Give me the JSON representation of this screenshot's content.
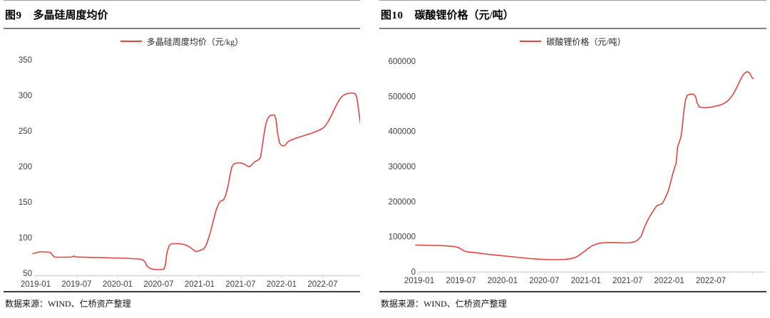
{
  "palette": {
    "series_line": "#de4540",
    "axis_line": "#d6d6d6",
    "tick_text": "#3d3d3d"
  },
  "chart_data": [
    {
      "type": "line",
      "figure_label": "图9",
      "title": "多晶硅周度均价",
      "legend": [
        "多晶硅周度均价（元/kg）"
      ],
      "source_note": "数据来源：WIND、仁桥资产整理",
      "xlabel": "",
      "ylabel": "",
      "ylim": [
        50,
        350
      ],
      "yticks": [
        50,
        100,
        150,
        200,
        250,
        300,
        350
      ],
      "x_unit": "months since 2019-01",
      "x_range": [
        -0.5,
        48.3
      ],
      "grid": false,
      "legend_position": "top-center",
      "xticks": [
        {
          "t": 0,
          "label": "2019-01"
        },
        {
          "t": 6,
          "label": "2019-07"
        },
        {
          "t": 12,
          "label": "2020-01"
        },
        {
          "t": 18,
          "label": "2020-07"
        },
        {
          "t": 24,
          "label": "2021-01"
        },
        {
          "t": 30,
          "label": "2021-07"
        },
        {
          "t": 36,
          "label": "2022-01"
        },
        {
          "t": 42,
          "label": "2022-07"
        },
        {
          "t": 48,
          "label": ""
        }
      ],
      "series": [
        {
          "name": "多晶硅周度均价（元/kg）",
          "points": [
            [
              -0.4,
              77.5
            ],
            [
              0,
              78.5
            ],
            [
              0.6,
              80
            ],
            [
              1.2,
              80
            ],
            [
              1.8,
              79.5
            ],
            [
              2.2,
              79
            ],
            [
              2.5,
              75
            ],
            [
              2.8,
              72.5
            ],
            [
              3.5,
              72.5
            ],
            [
              4.5,
              72.5
            ],
            [
              5.3,
              72.7
            ],
            [
              5.6,
              74
            ],
            [
              5.9,
              72.8
            ],
            [
              7,
              72.5
            ],
            [
              8,
              72.2
            ],
            [
              9,
              72
            ],
            [
              10,
              71.8
            ],
            [
              11,
              71.5
            ],
            [
              12,
              71.2
            ],
            [
              13,
              71
            ],
            [
              14,
              70.5
            ],
            [
              15,
              70
            ],
            [
              15.6,
              69.2
            ],
            [
              16,
              66
            ],
            [
              16.3,
              60
            ],
            [
              16.7,
              57
            ],
            [
              17.2,
              55.5
            ],
            [
              17.8,
              55
            ],
            [
              18.4,
              55
            ],
            [
              18.8,
              56
            ],
            [
              19,
              62
            ],
            [
              19.2,
              78
            ],
            [
              19.5,
              88
            ],
            [
              19.8,
              91
            ],
            [
              20.2,
              91.5
            ],
            [
              20.8,
              91.5
            ],
            [
              21.4,
              91
            ],
            [
              22,
              89.5
            ],
            [
              22.5,
              87
            ],
            [
              23,
              83.5
            ],
            [
              23.4,
              80.5
            ],
            [
              23.8,
              81
            ],
            [
              24.2,
              82.5
            ],
            [
              24.6,
              84
            ],
            [
              24.9,
              88
            ],
            [
              25.2,
              96
            ],
            [
              25.6,
              108
            ],
            [
              26,
              124
            ],
            [
              26.4,
              138
            ],
            [
              26.8,
              148
            ],
            [
              27.1,
              151.5
            ],
            [
              27.5,
              153
            ],
            [
              27.8,
              159
            ],
            [
              28.1,
              170
            ],
            [
              28.4,
              185
            ],
            [
              28.7,
              199
            ],
            [
              29,
              203.5
            ],
            [
              29.5,
              205
            ],
            [
              30,
              205
            ],
            [
              30.5,
              203.5
            ],
            [
              31,
              200.5
            ],
            [
              31.3,
              199.5
            ],
            [
              31.7,
              203
            ],
            [
              32.1,
              207
            ],
            [
              32.5,
              208.5
            ],
            [
              32.9,
              212
            ],
            [
              33.1,
              224
            ],
            [
              33.4,
              244
            ],
            [
              33.7,
              260
            ],
            [
              34,
              268
            ],
            [
              34.3,
              271.5
            ],
            [
              34.7,
              272.5
            ],
            [
              35,
              272
            ],
            [
              35.2,
              265
            ],
            [
              35.4,
              248
            ],
            [
              35.7,
              233
            ],
            [
              36,
              229.5
            ],
            [
              36.4,
              229
            ],
            [
              36.7,
              232
            ],
            [
              37,
              235.5
            ],
            [
              37.5,
              237.5
            ],
            [
              38,
              239.5
            ],
            [
              38.5,
              241
            ],
            [
              39,
              242.5
            ],
            [
              39.5,
              244
            ],
            [
              40,
              245.5
            ],
            [
              40.5,
              247
            ],
            [
              41,
              249
            ],
            [
              41.5,
              251
            ],
            [
              42,
              253.5
            ],
            [
              42.4,
              257
            ],
            [
              42.8,
              263
            ],
            [
              43.2,
              270
            ],
            [
              43.6,
              278
            ],
            [
              44,
              286
            ],
            [
              44.4,
              293
            ],
            [
              44.8,
              298
            ],
            [
              45.2,
              301
            ],
            [
              45.6,
              302.5
            ],
            [
              46,
              303
            ],
            [
              46.5,
              303
            ],
            [
              46.8,
              302
            ],
            [
              47,
              297
            ],
            [
              47.2,
              285
            ],
            [
              47.4,
              270
            ],
            [
              47.6,
              255
            ]
          ]
        }
      ]
    },
    {
      "type": "line",
      "figure_label": "图10",
      "title": "碳酸锂价格（元/吨）",
      "legend": [
        "碳酸锂价格（元/吨）"
      ],
      "source_note": "数据来源：WIND、仁桥资产整理",
      "xlabel": "",
      "ylabel": "",
      "ylim": [
        0,
        600000
      ],
      "yticks": [
        0,
        100000,
        200000,
        300000,
        400000,
        500000,
        600000
      ],
      "x_unit": "months since 2019-01",
      "x_range": [
        -0.6,
        48.4
      ],
      "grid": false,
      "legend_position": "top-center",
      "xticks": [
        {
          "t": 0,
          "label": "2019-01"
        },
        {
          "t": 6,
          "label": "2019-07"
        },
        {
          "t": 12,
          "label": "2020-01"
        },
        {
          "t": 18,
          "label": "2020-07"
        },
        {
          "t": 24,
          "label": "2021-01"
        },
        {
          "t": 30,
          "label": "2021-07"
        },
        {
          "t": 36,
          "label": "2022-01"
        },
        {
          "t": 42,
          "label": "2022-07"
        },
        {
          "t": 48,
          "label": ""
        }
      ],
      "series": [
        {
          "name": "碳酸锂价格（元/吨）",
          "points": [
            [
              -0.5,
              76000
            ],
            [
              0,
              76000
            ],
            [
              1,
              75500
            ],
            [
              2,
              75000
            ],
            [
              3,
              74500
            ],
            [
              4,
              73500
            ],
            [
              5,
              72000
            ],
            [
              5.5,
              70000
            ],
            [
              6,
              65000
            ],
            [
              6.5,
              59000
            ],
            [
              7,
              56500
            ],
            [
              8,
              54500
            ],
            [
              9,
              52000
            ],
            [
              10,
              49500
            ],
            [
              11,
              47500
            ],
            [
              12,
              45500
            ],
            [
              13,
              43500
            ],
            [
              14,
              41500
            ],
            [
              15,
              39500
            ],
            [
              16,
              37500
            ],
            [
              17,
              36000
            ],
            [
              18,
              35000
            ],
            [
              19,
              34500
            ],
            [
              20,
              34500
            ],
            [
              21,
              35000
            ],
            [
              21.8,
              37000
            ],
            [
              22.5,
              41000
            ],
            [
              23,
              46500
            ],
            [
              23.5,
              54000
            ],
            [
              24,
              61000
            ],
            [
              24.5,
              69000
            ],
            [
              25,
              75000
            ],
            [
              25.5,
              79000
            ],
            [
              26,
              81500
            ],
            [
              26.5,
              82500
            ],
            [
              27,
              83000
            ],
            [
              28,
              83000
            ],
            [
              29,
              82500
            ],
            [
              30,
              82000
            ],
            [
              30.6,
              83500
            ],
            [
              31.2,
              87000
            ],
            [
              31.6,
              93000
            ],
            [
              32,
              103000
            ],
            [
              32.4,
              125000
            ],
            [
              32.8,
              143000
            ],
            [
              33.2,
              158000
            ],
            [
              33.6,
              170000
            ],
            [
              33.9,
              180000
            ],
            [
              34.2,
              188000
            ],
            [
              34.6,
              191000
            ],
            [
              35,
              194000
            ],
            [
              35.3,
              205000
            ],
            [
              35.6,
              217000
            ],
            [
              35.9,
              232000
            ],
            [
              36.2,
              255000
            ],
            [
              36.5,
              278000
            ],
            [
              36.8,
              298000
            ],
            [
              37,
              310000
            ],
            [
              37.2,
              355000
            ],
            [
              37.45,
              370000
            ],
            [
              37.7,
              385000
            ],
            [
              37.9,
              415000
            ],
            [
              38.1,
              455000
            ],
            [
              38.35,
              490000
            ],
            [
              38.6,
              503000
            ],
            [
              39,
              506000
            ],
            [
              39.5,
              506000
            ],
            [
              39.8,
              499000
            ],
            [
              40,
              482000
            ],
            [
              40.3,
              470000
            ],
            [
              41,
              467000
            ],
            [
              41.5,
              468000
            ],
            [
              42,
              469000
            ],
            [
              42.5,
              471000
            ],
            [
              43,
              473000
            ],
            [
              43.5,
              476000
            ],
            [
              44,
              481000
            ],
            [
              44.5,
              488000
            ],
            [
              45,
              500000
            ],
            [
              45.4,
              512000
            ],
            [
              45.8,
              528000
            ],
            [
              46.2,
              545000
            ],
            [
              46.6,
              560000
            ],
            [
              47,
              568000
            ],
            [
              47.3,
              570000
            ],
            [
              47.6,
              566000
            ],
            [
              47.9,
              554000
            ],
            [
              48.1,
              550000
            ]
          ]
        }
      ]
    }
  ]
}
